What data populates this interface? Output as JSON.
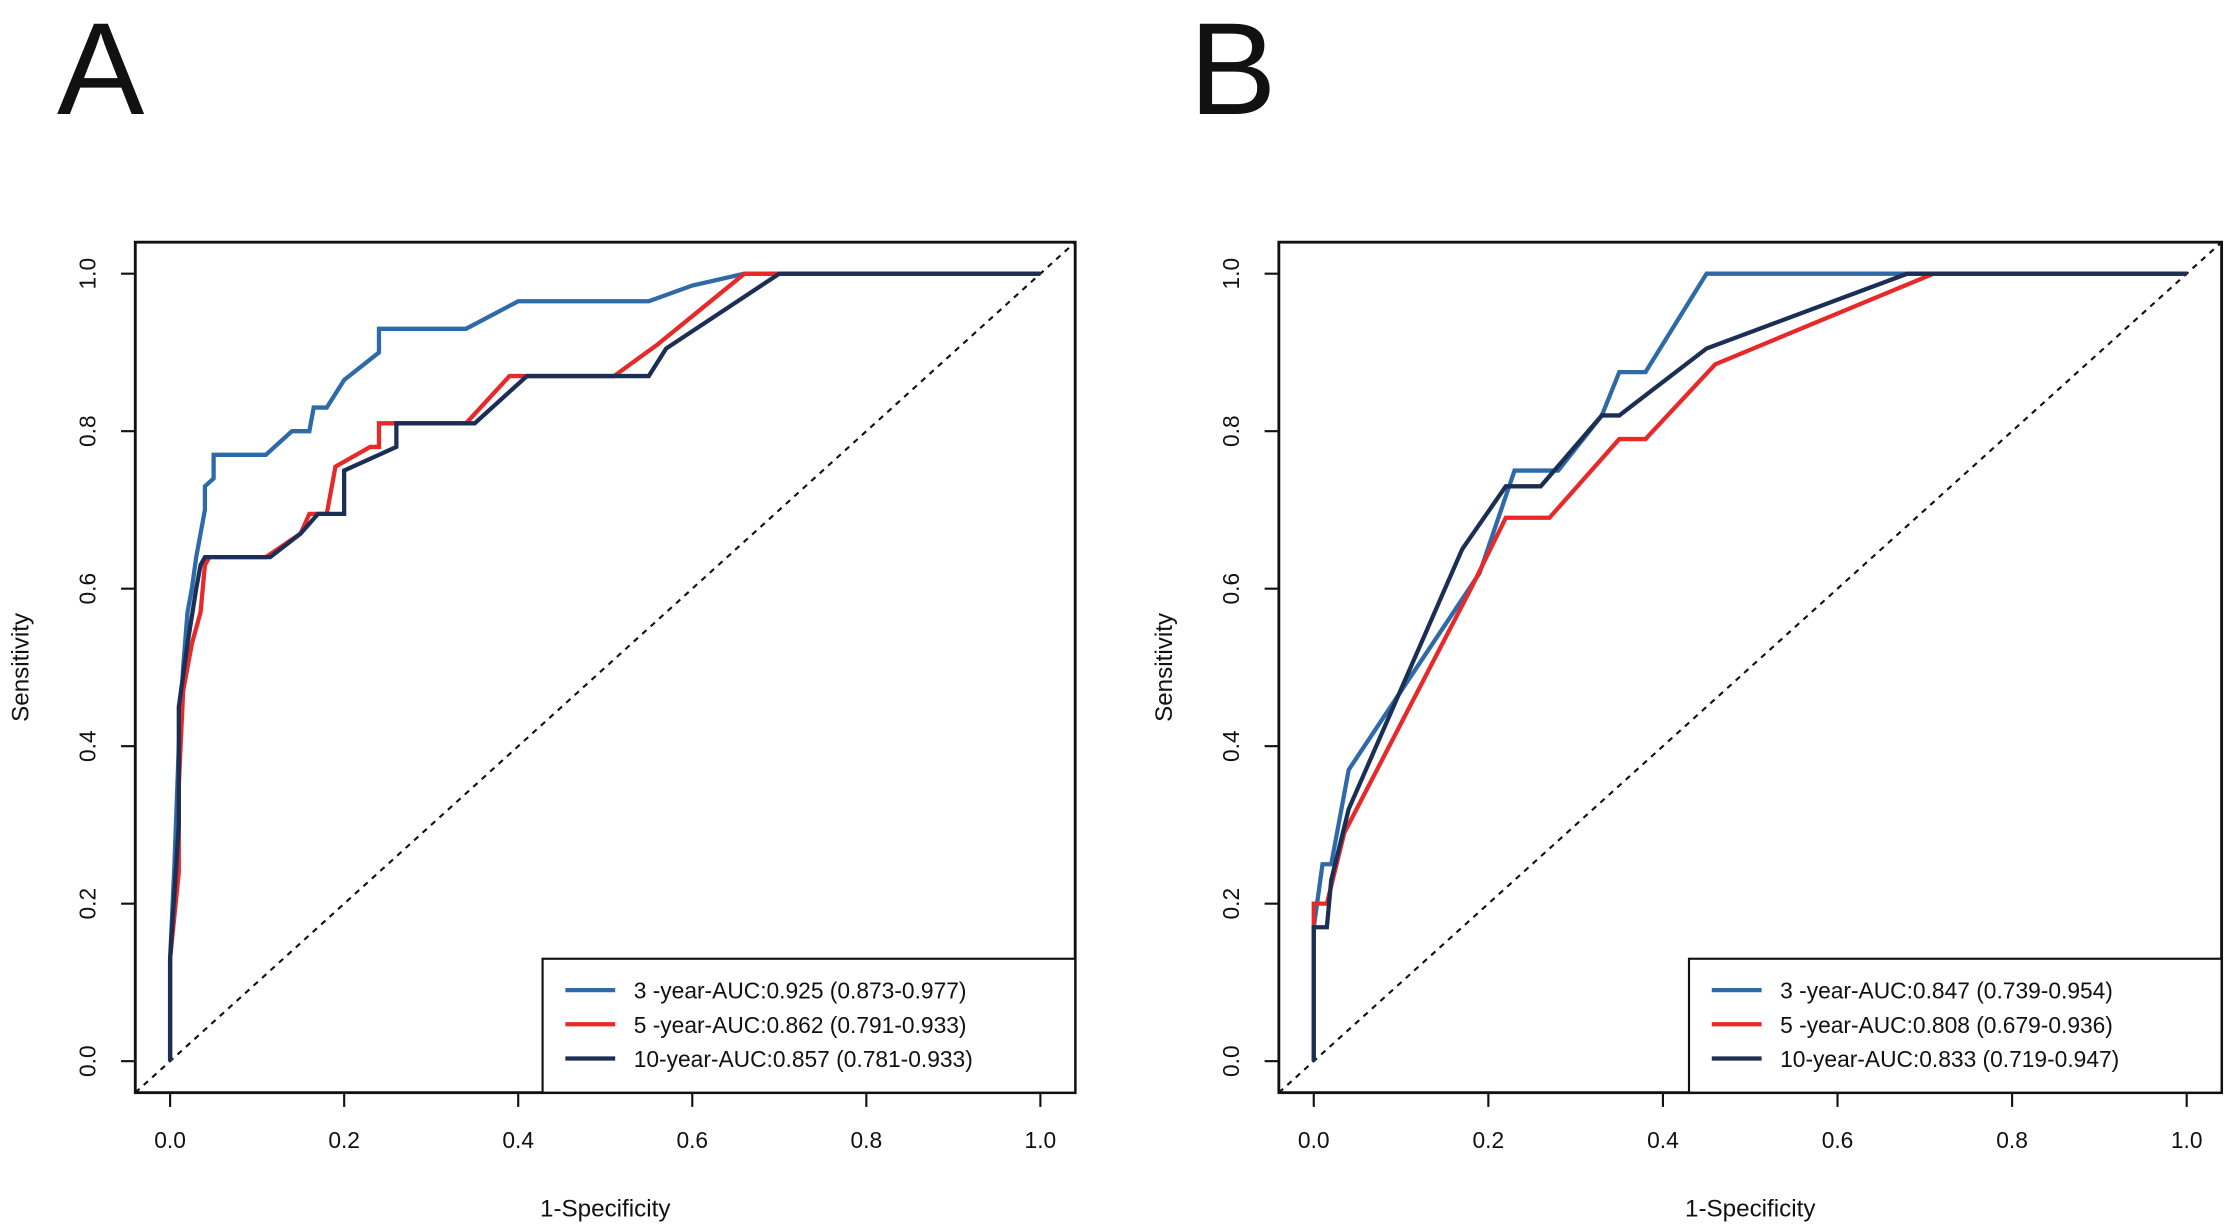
{
  "chart_data": [
    {
      "type": "line",
      "panel": "A",
      "xlabel": "1-Specificity",
      "ylabel": "Sensitivity",
      "xlim": [
        -0.04,
        1.04
      ],
      "ylim": [
        -0.04,
        1.04
      ],
      "xticks": [
        {
          "value": 0,
          "label": "0.0"
        },
        0.2,
        0.4,
        0.6,
        0.8,
        {
          "value": 1,
          "label": "1.0"
        }
      ],
      "yticks": [
        {
          "value": 0,
          "label": "0.0"
        },
        0.2,
        0.4,
        0.6,
        0.8,
        {
          "value": 1,
          "label": "1.0"
        }
      ],
      "diagonal": true,
      "legend": "bottom-right",
      "series": [
        {
          "name": "3 -year-AUC:0.925 (0.873-0.977)",
          "color": "#2f6aa8",
          "x": [
            0,
            0,
            0.005,
            0.01,
            0.015,
            0.02,
            0.025,
            0.03,
            0.035,
            0.04,
            0.04,
            0.05,
            0.05,
            0.11,
            0.14,
            0.16,
            0.165,
            0.18,
            0.2,
            0.24,
            0.24,
            0.34,
            0.4,
            0.55,
            0.6,
            0.66,
            1
          ],
          "values": [
            0,
            0.13,
            0.25,
            0.4,
            0.5,
            0.57,
            0.6,
            0.64,
            0.67,
            0.7,
            0.73,
            0.74,
            0.77,
            0.77,
            0.8,
            0.8,
            0.83,
            0.83,
            0.865,
            0.9,
            0.93,
            0.93,
            0.965,
            0.965,
            0.985,
            1,
            1
          ]
        },
        {
          "name": "5 -year-AUC:0.862 (0.791-0.933)",
          "color": "#e8292a",
          "x": [
            0,
            0,
            0.01,
            0.01,
            0.015,
            0.025,
            0.035,
            0.04,
            0.045,
            0.11,
            0.15,
            0.16,
            0.18,
            0.19,
            0.23,
            0.24,
            0.24,
            0.34,
            0.39,
            0.51,
            0.56,
            0.66,
            1
          ],
          "values": [
            0,
            0.13,
            0.24,
            0.35,
            0.47,
            0.53,
            0.57,
            0.63,
            0.64,
            0.64,
            0.67,
            0.695,
            0.695,
            0.755,
            0.78,
            0.78,
            0.81,
            0.81,
            0.87,
            0.87,
            0.91,
            1,
            1
          ]
        },
        {
          "name": "10-year-AUC:0.857 (0.781-0.933)",
          "color": "#1b2f55",
          "x": [
            0,
            0,
            0.01,
            0.01,
            0.02,
            0.03,
            0.035,
            0.04,
            0.115,
            0.15,
            0.17,
            0.2,
            0.2,
            0.26,
            0.26,
            0.35,
            0.41,
            0.55,
            0.57,
            0.7,
            1
          ],
          "values": [
            0,
            0.13,
            0.3,
            0.45,
            0.53,
            0.6,
            0.63,
            0.64,
            0.64,
            0.67,
            0.695,
            0.695,
            0.75,
            0.78,
            0.81,
            0.81,
            0.87,
            0.87,
            0.905,
            1,
            1
          ]
        }
      ]
    },
    {
      "type": "line",
      "panel": "B",
      "xlabel": "1-Specificity",
      "ylabel": "Sensitivity",
      "xlim": [
        -0.04,
        1.04
      ],
      "ylim": [
        -0.04,
        1.04
      ],
      "xticks": [
        {
          "value": 0,
          "label": "0.0"
        },
        0.2,
        0.4,
        0.6,
        0.8,
        {
          "value": 1,
          "label": "1.0"
        }
      ],
      "yticks": [
        {
          "value": 0,
          "label": "0.0"
        },
        0.2,
        0.4,
        0.6,
        0.8,
        {
          "value": 1,
          "label": "1.0"
        }
      ],
      "diagonal": true,
      "legend": "bottom-right",
      "series": [
        {
          "name": "3 -year-AUC:0.847 (0.739-0.954)",
          "color": "#2f6aa8",
          "x": [
            0,
            0,
            0.01,
            0.02,
            0.04,
            0.19,
            0.23,
            0.28,
            0.33,
            0.35,
            0.38,
            0.45,
            1
          ],
          "values": [
            0,
            0.17,
            0.25,
            0.25,
            0.37,
            0.62,
            0.75,
            0.75,
            0.82,
            0.875,
            0.875,
            1,
            1
          ]
        },
        {
          "name": "5 -year-AUC:0.808 (0.679-0.936)",
          "color": "#e8292a",
          "x": [
            0,
            0,
            0.015,
            0.035,
            0.18,
            0.22,
            0.27,
            0.35,
            0.38,
            0.46,
            0.71,
            1
          ],
          "values": [
            0,
            0.2,
            0.2,
            0.29,
            0.6,
            0.69,
            0.69,
            0.79,
            0.79,
            0.885,
            1,
            1
          ]
        },
        {
          "name": "10-year-AUC:0.833 (0.719-0.947)",
          "color": "#1b2f55",
          "x": [
            0,
            0,
            0.015,
            0.02,
            0.04,
            0.17,
            0.22,
            0.26,
            0.33,
            0.35,
            0.45,
            0.68,
            1
          ],
          "values": [
            0,
            0.17,
            0.17,
            0.23,
            0.32,
            0.65,
            0.73,
            0.73,
            0.82,
            0.82,
            0.905,
            1,
            1
          ]
        }
      ]
    }
  ]
}
